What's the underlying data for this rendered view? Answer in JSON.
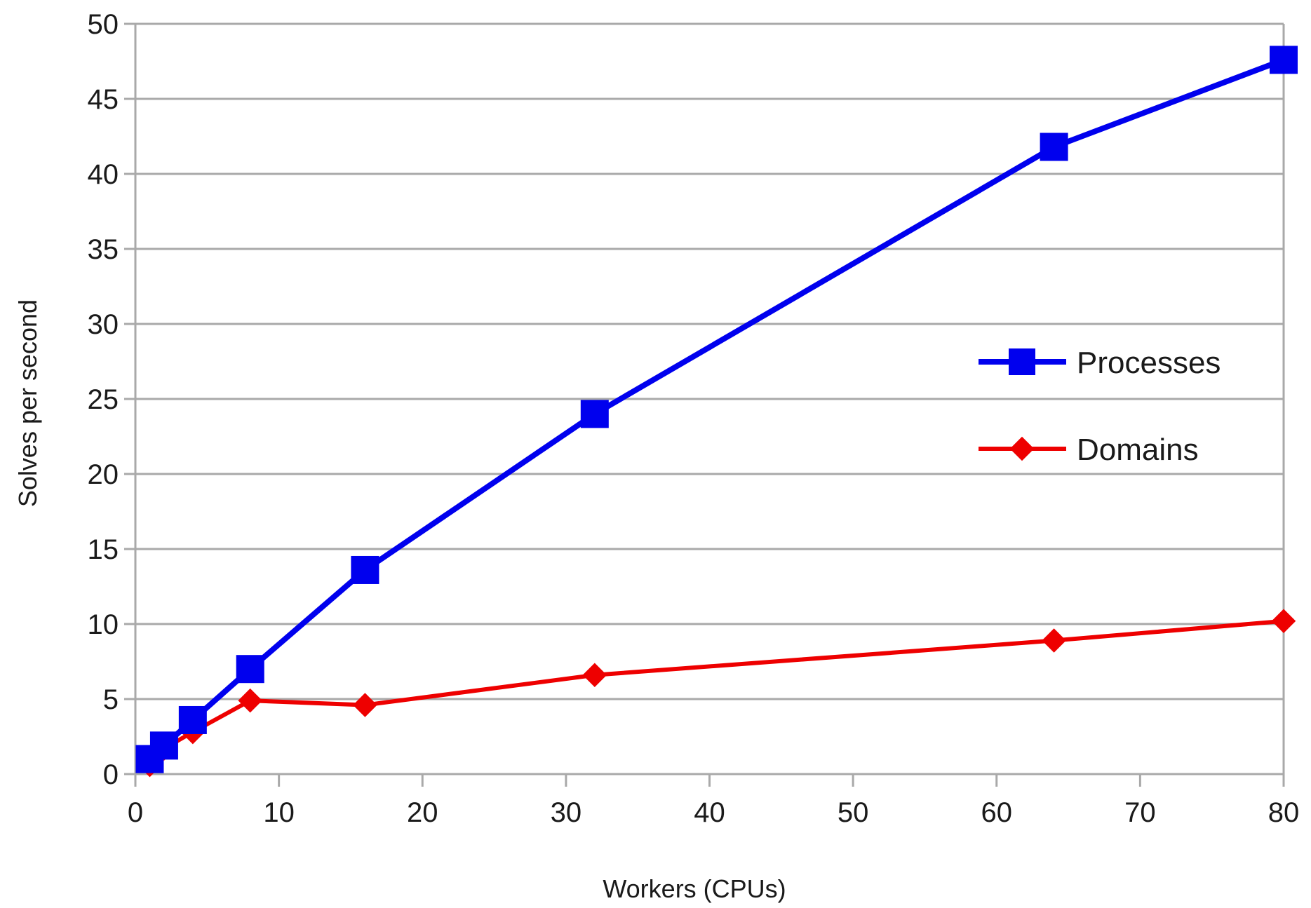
{
  "chart_data": {
    "type": "line",
    "title": "",
    "xlabel": "Workers (CPUs)",
    "ylabel": "Solves per second",
    "xlim": [
      0,
      80
    ],
    "ylim": [
      0,
      50
    ],
    "x_ticks": [
      0,
      10,
      20,
      30,
      40,
      50,
      60,
      70,
      80
    ],
    "y_ticks": [
      0,
      5,
      10,
      15,
      20,
      25,
      30,
      35,
      40,
      45,
      50
    ],
    "grid": "horizontal",
    "legend_position": "right",
    "series": [
      {
        "name": "Processes",
        "color": "#0000ee",
        "marker": "square",
        "x": [
          1,
          2,
          4,
          8,
          16,
          32,
          64,
          80
        ],
        "y": [
          1.0,
          1.9,
          3.6,
          7.0,
          13.6,
          24.0,
          41.8,
          47.6
        ]
      },
      {
        "name": "Domains",
        "color": "#ee0000",
        "marker": "diamond",
        "x": [
          1,
          2,
          4,
          8,
          16,
          32,
          64,
          80
        ],
        "y": [
          0.6,
          1.7,
          2.8,
          4.9,
          4.6,
          6.6,
          8.9,
          10.2
        ]
      }
    ]
  }
}
